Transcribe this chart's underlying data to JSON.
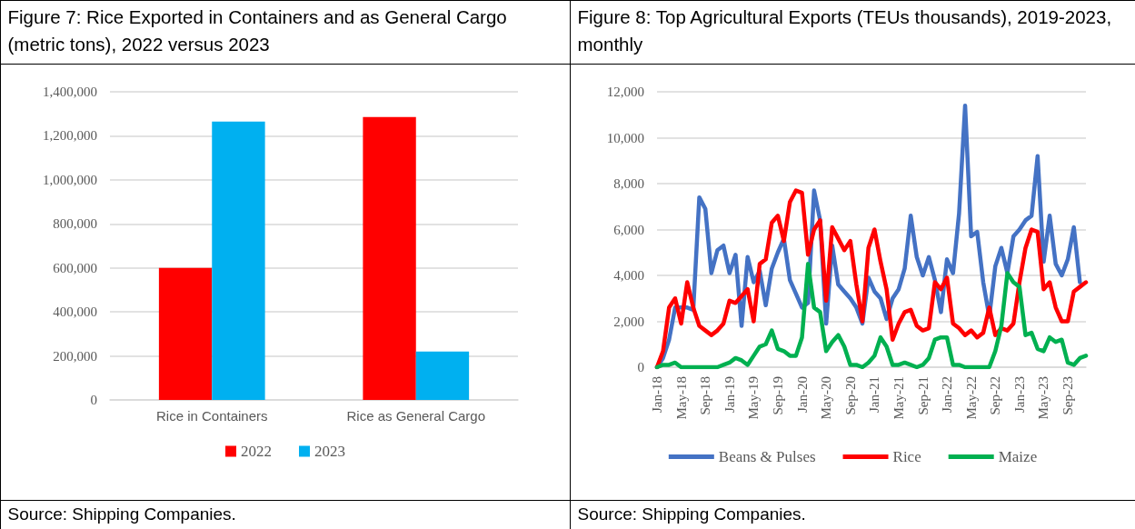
{
  "chart_data": [
    {
      "type": "bar",
      "title": "Figure 7: Rice Exported in Containers and as General Cargo (metric tons), 2022 versus 2023",
      "categories": [
        "Rice in Containers",
        "Rice as General Cargo"
      ],
      "series": [
        {
          "name": "2022",
          "color": "#ff0000",
          "values": [
            600000,
            1285000
          ]
        },
        {
          "name": "2023",
          "color": "#00b0f0",
          "values": [
            1265000,
            220000
          ]
        }
      ],
      "ylim": [
        0,
        1400000
      ],
      "yticks": [
        0,
        {
          "value": 200000,
          "label": "200,000"
        },
        {
          "value": 400000,
          "label": "400,000"
        },
        {
          "value": 600000,
          "label": "600,000"
        },
        {
          "value": 800000,
          "label": "800,000"
        },
        {
          "value": 1000000,
          "label": "1,000,000"
        },
        {
          "value": 1200000,
          "label": "1,200,000"
        },
        {
          "value": 1400000,
          "label": "1,400,000"
        }
      ],
      "grid": "y",
      "legend": "bottom",
      "annotations": [
        "Source: Shipping Companies."
      ]
    },
    {
      "type": "line",
      "title": "Figure 8: Top Agricultural Exports (TEUs thousands), 2019-2023, monthly",
      "categories": [
        "Jan-18",
        null,
        null,
        null,
        "May-18",
        null,
        null,
        null,
        "Sep-18",
        null,
        null,
        null,
        "Jan-19",
        null,
        null,
        null,
        "May-19",
        null,
        null,
        null,
        "Sep-19",
        null,
        null,
        null,
        "Jan-20",
        null,
        null,
        null,
        "May-20",
        null,
        null,
        null,
        "Sep-20",
        null,
        null,
        null,
        "Jan-21",
        null,
        null,
        null,
        "May-21",
        null,
        null,
        null,
        "Sep-21",
        null,
        null,
        null,
        "Jan-22",
        null,
        null,
        null,
        "May-22",
        null,
        null,
        null,
        "Sep-22",
        null,
        null,
        null,
        "Jan-23",
        null,
        null,
        null,
        "May-23",
        null,
        null,
        null,
        "Sep-23",
        null,
        null,
        null
      ],
      "series": [
        {
          "name": "Beans & Pulses",
          "color": "#4472c4",
          "values": [
            0,
            400,
            1200,
            2600,
            2600,
            2600,
            2500,
            7400,
            6900,
            4100,
            5100,
            5300,
            4100,
            4900,
            1800,
            4800,
            3700,
            4200,
            2700,
            4300,
            5000,
            5600,
            3800,
            3200,
            2600,
            2800,
            7700,
            6400,
            1900,
            5300,
            3600,
            3300,
            3000,
            2600,
            1900,
            3900,
            3300,
            3000,
            2100,
            3000,
            3400,
            4300,
            6600,
            4800,
            4000,
            4800,
            3800,
            2400,
            4700,
            4100,
            6700,
            11400,
            5700,
            5900,
            3700,
            2200,
            4400,
            5200,
            4100,
            5700,
            6000,
            6400,
            6600,
            9200,
            4600,
            6600,
            4500,
            4000,
            4700,
            6100,
            3700,
            null
          ]
        },
        {
          "name": "Rice",
          "color": "#ff0000",
          "values": [
            0,
            700,
            2600,
            3000,
            1900,
            3700,
            2600,
            1800,
            1600,
            1400,
            1600,
            1900,
            2900,
            2800,
            3100,
            3400,
            2000,
            4500,
            4700,
            6300,
            6600,
            5500,
            7200,
            7700,
            7600,
            4900,
            6000,
            6400,
            2900,
            6100,
            5600,
            5100,
            5500,
            3600,
            2000,
            5200,
            6000,
            4600,
            3400,
            1200,
            1900,
            2400,
            2500,
            1800,
            1600,
            1700,
            3700,
            3400,
            3900,
            1900,
            1700,
            1400,
            1600,
            1300,
            1500,
            2600,
            1400,
            1700,
            1600,
            1900,
            3700,
            5200,
            6000,
            5900,
            3400,
            3700,
            2600,
            2000,
            2000,
            3300,
            3500,
            3700
          ]
        },
        {
          "name": "Maize",
          "color": "#00b050",
          "values": [
            0,
            100,
            100,
            200,
            0,
            0,
            0,
            0,
            0,
            0,
            0,
            100,
            200,
            400,
            300,
            100,
            500,
            900,
            1000,
            1600,
            800,
            700,
            500,
            500,
            1300,
            4500,
            2600,
            2400,
            700,
            1100,
            1400,
            900,
            100,
            100,
            0,
            200,
            500,
            1300,
            900,
            100,
            100,
            200,
            100,
            0,
            100,
            400,
            1200,
            1300,
            1300,
            100,
            100,
            0,
            0,
            0,
            0,
            0,
            700,
            1800,
            4100,
            3700,
            3500,
            1400,
            1500,
            800,
            700,
            1300,
            1100,
            1200,
            200,
            100,
            400,
            500
          ]
        }
      ],
      "ylim": [
        0,
        12000
      ],
      "yticks": [
        0,
        {
          "value": 2000,
          "label": "2,000"
        },
        {
          "value": 4000,
          "label": "4,000"
        },
        {
          "value": 6000,
          "label": "6,000"
        },
        {
          "value": 8000,
          "label": "8,000"
        },
        {
          "value": 10000,
          "label": "10,000"
        },
        {
          "value": 12000,
          "label": "12,000"
        }
      ],
      "grid": "y",
      "legend": "bottom",
      "marker": "none",
      "line_style": "solid",
      "annotations": [
        "Source: Shipping Companies."
      ]
    }
  ]
}
